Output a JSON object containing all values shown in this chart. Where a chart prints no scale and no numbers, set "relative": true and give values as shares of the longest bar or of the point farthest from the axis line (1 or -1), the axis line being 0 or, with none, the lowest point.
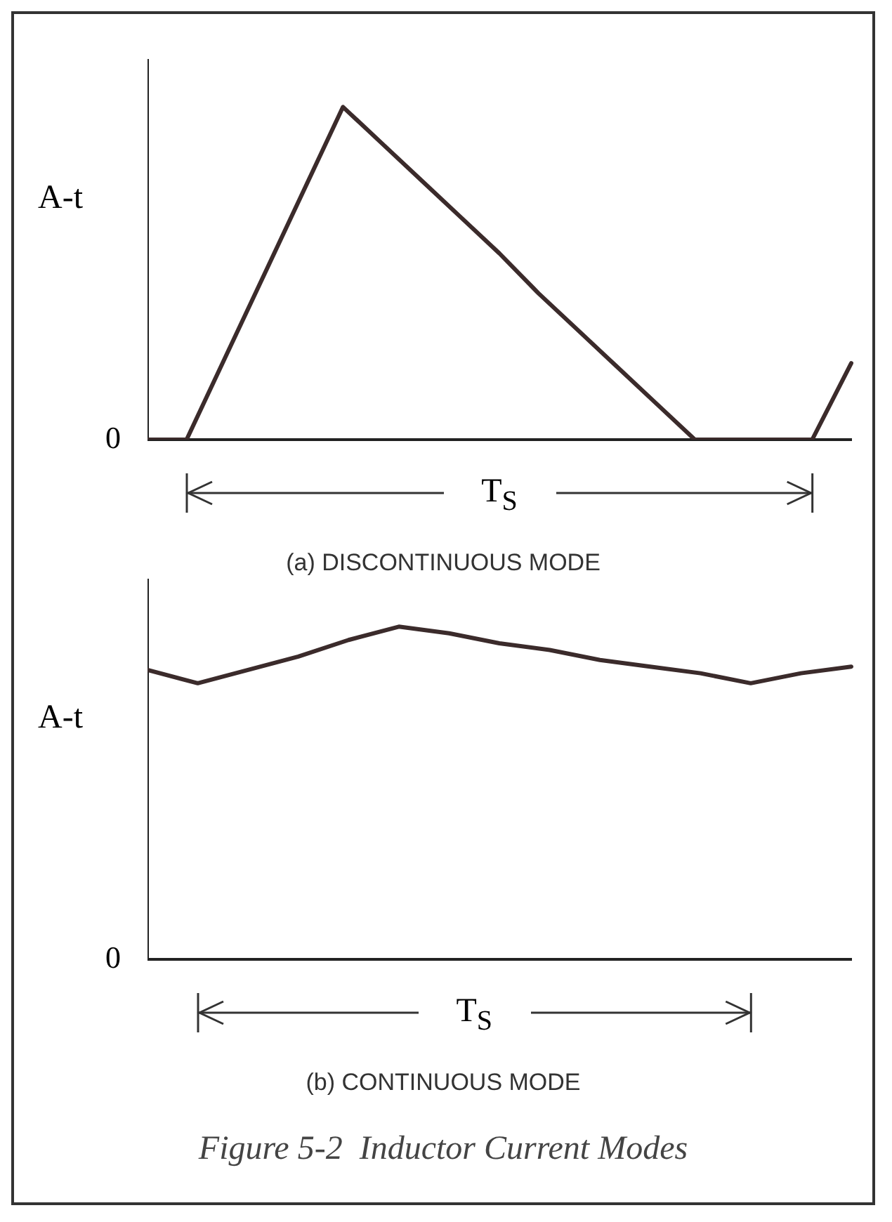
{
  "chart_data": [
    {
      "type": "line",
      "relative": true,
      "ylabel": "A-t",
      "color": "#3b2b2b",
      "categories": [
        null,
        null,
        null,
        null,
        null,
        null,
        null,
        null,
        null,
        null,
        null,
        null,
        null,
        null,
        null,
        null,
        null,
        null,
        null
      ],
      "values": [
        0,
        0,
        0.25,
        0.5,
        0.75,
        1,
        0.89,
        0.78,
        0.67,
        0.56,
        0.44,
        0.33,
        0.22,
        0.11,
        0,
        0,
        0,
        0,
        0.23
      ],
      "annotations": [
        "0",
        "T$_{S}$",
        "(a) DISCONTINUOUS MODE"
      ]
    },
    {
      "type": "line",
      "relative": true,
      "ylabel": "A-t",
      "color": "#3b2b2b",
      "categories": [
        null,
        null,
        null,
        null,
        null,
        null,
        null,
        null,
        null,
        null,
        null,
        null,
        null,
        null,
        null
      ],
      "values": [
        0.87,
        0.83,
        0.87,
        0.91,
        0.96,
        1,
        0.98,
        0.95,
        0.93,
        0.9,
        0.88,
        0.86,
        0.83,
        0.86,
        0.88
      ],
      "annotations": [
        "0",
        "T$_{S}$",
        "(b) CONTINUOUS MODE",
        "Figure 5-2  Inductor Current Modes"
      ]
    }
  ]
}
